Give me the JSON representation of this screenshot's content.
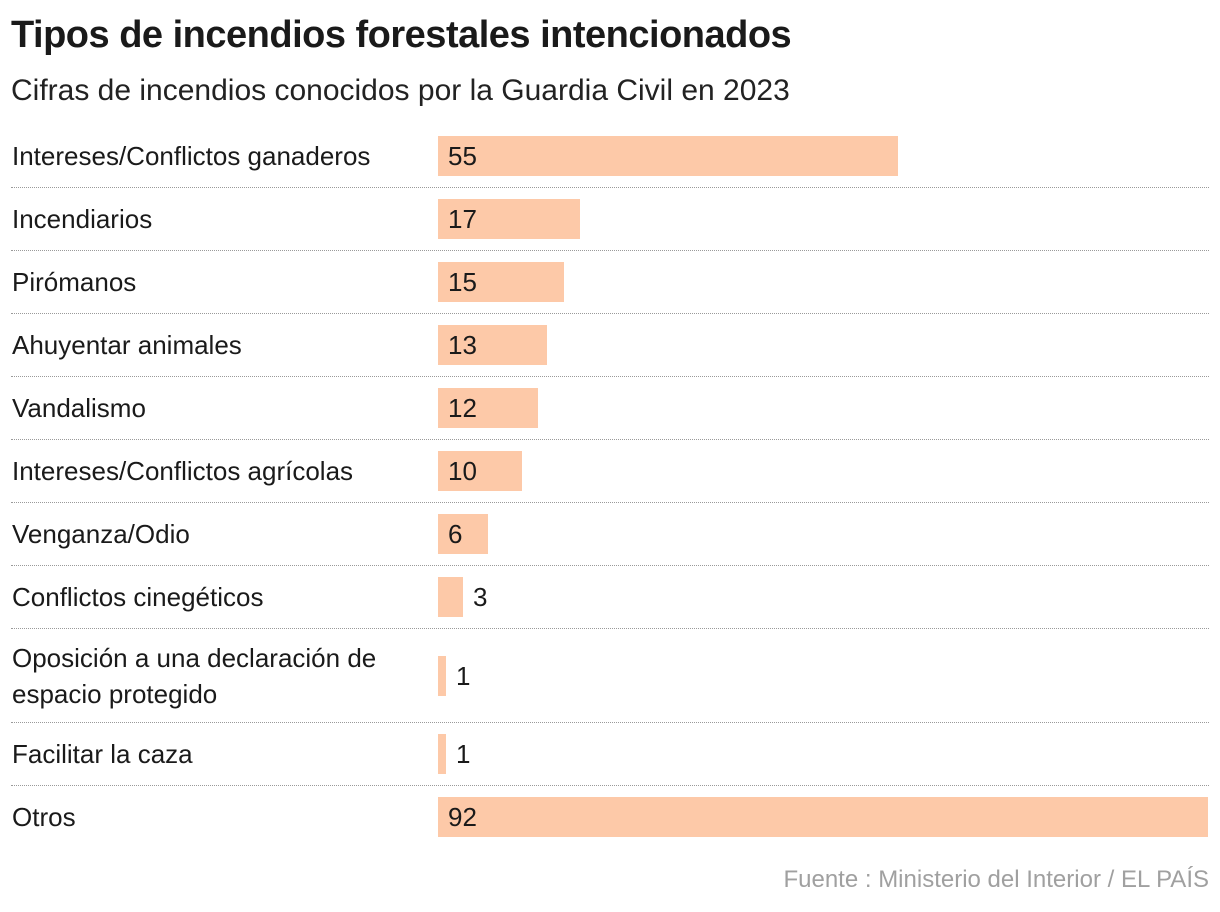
{
  "chart_data": {
    "type": "bar",
    "orientation": "horizontal",
    "title": "Tipos de incendios forestales intencionados",
    "subtitle": "Cifras de incendios conocidos por la Guardia Civil en 2023",
    "categories": [
      "Intereses/Conflictos ganaderos",
      "Incendiarios",
      "Pirómanos",
      "Ahuyentar animales",
      "Vandalismo",
      "Intereses/Conflictos agrícolas",
      "Venganza/Odio",
      "Conflictos cinegéticos",
      "Oposición a una declaración de espacio protegido",
      "Facilitar la caza",
      "Otros"
    ],
    "values": [
      55,
      17,
      15,
      13,
      12,
      10,
      6,
      3,
      1,
      1,
      92
    ],
    "xlim": [
      0,
      92
    ],
    "xlabel": "",
    "ylabel": "",
    "grid": false,
    "legend": "none",
    "bar_color": "#fdc9a8",
    "source": "Fuente : Ministerio del Interior / EL PAÍS"
  }
}
